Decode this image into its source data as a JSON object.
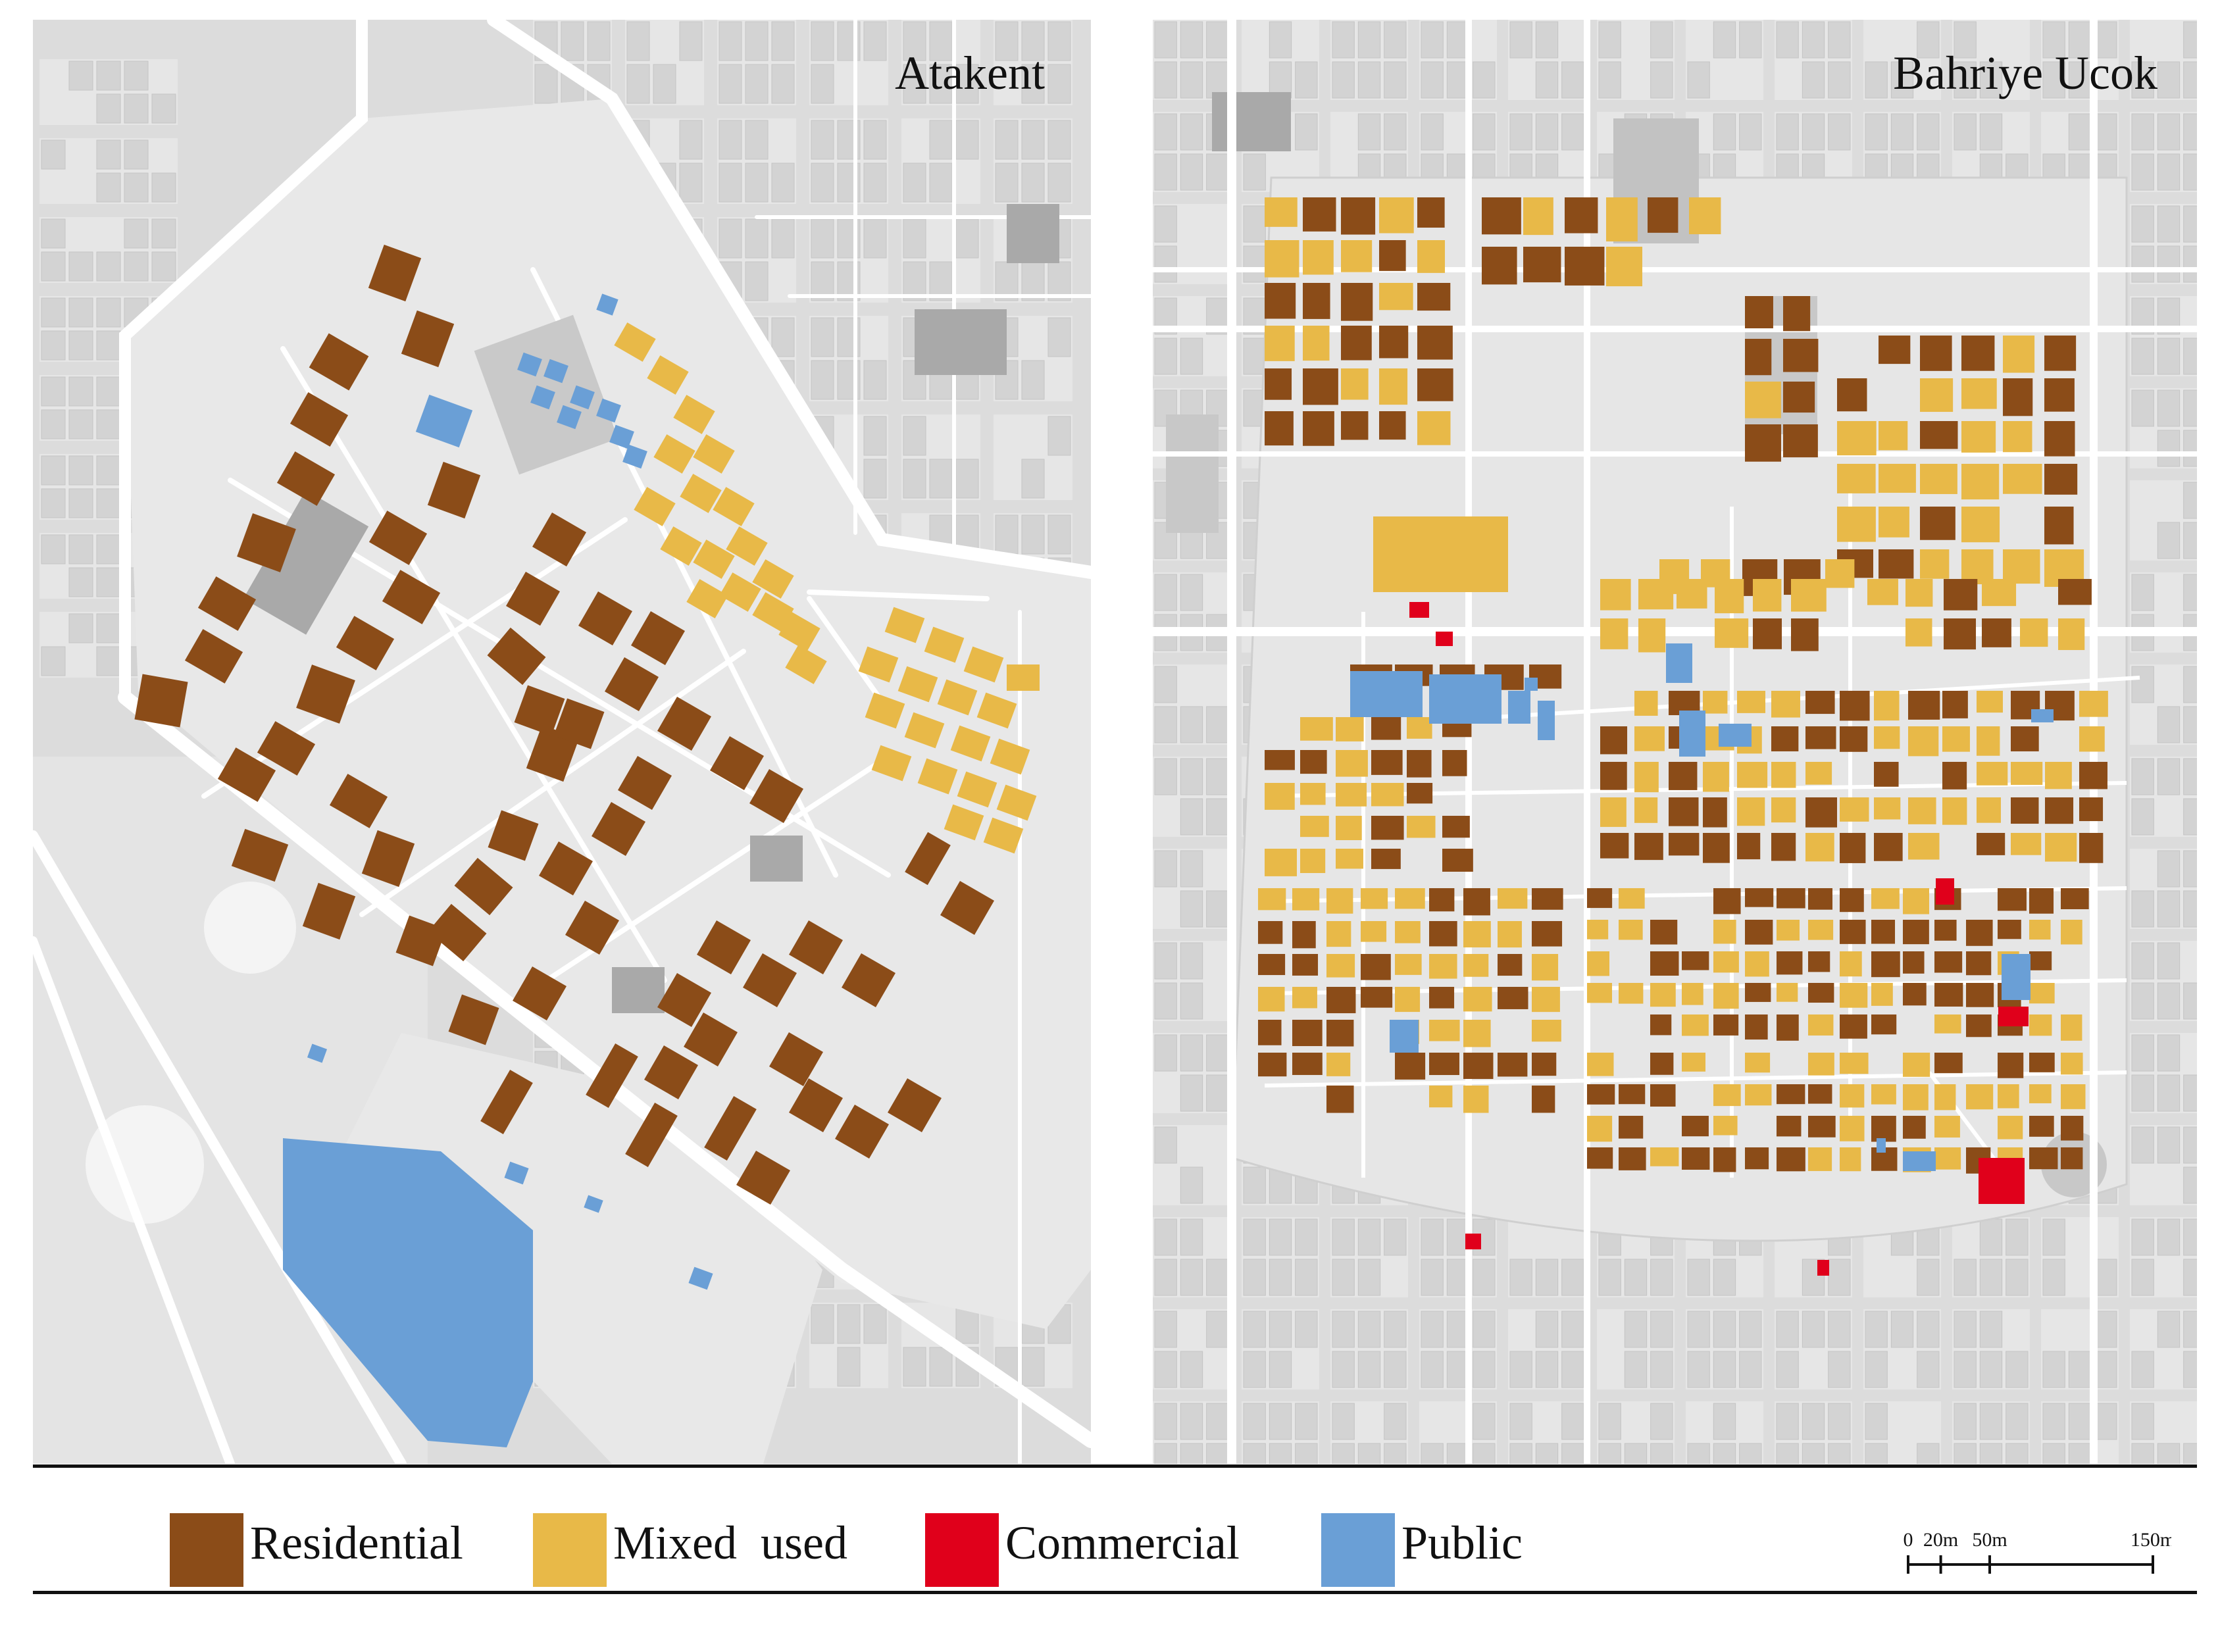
{
  "maps": {
    "left": {
      "title": "Atakent"
    },
    "right": {
      "title": "Bahriye Ucok"
    }
  },
  "legend": [
    {
      "label": "Residential",
      "color": "#8b4c18"
    },
    {
      "label": "Mixed  used",
      "color": "#e8b948"
    },
    {
      "label": "Commercial",
      "color": "#e0001b"
    },
    {
      "label": "Public",
      "color": "#6a9fd6"
    }
  ],
  "scale": {
    "ticks": [
      {
        "value": 0,
        "label": "0"
      },
      {
        "value": 20,
        "label": "20m"
      },
      {
        "value": 50,
        "label": "50m"
      },
      {
        "value": 150,
        "label": "150m"
      }
    ],
    "max": 150
  },
  "colors": {
    "residential": "#8b4c18",
    "mixed": "#e8b948",
    "commercial": "#e0001b",
    "public": "#6a9fd6",
    "block": "#e6e6e6",
    "street": "#ffffff",
    "background": "#dcdcdc",
    "building_grey": "#a9a9a9"
  }
}
